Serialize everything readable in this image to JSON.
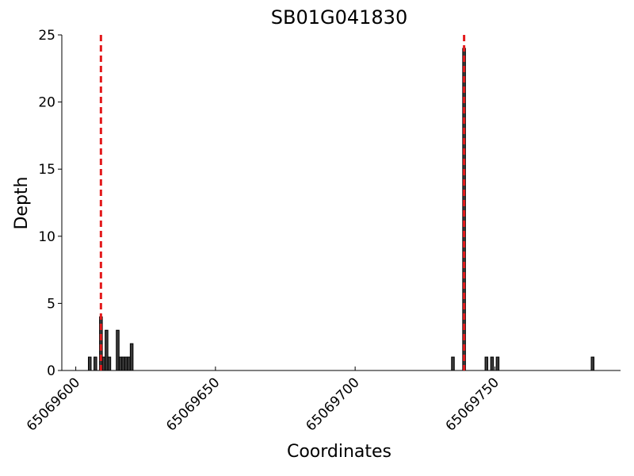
{
  "chart_data": {
    "type": "bar",
    "title": "SB01G041830",
    "x_label": "Coordinates",
    "y_label": "Depth",
    "x": [
      65069605,
      65069607,
      65069609,
      65069610,
      65069611,
      65069612,
      65069615,
      65069616,
      65069617,
      65069618,
      65069619,
      65069620,
      65069735,
      65069739,
      65069747,
      65069749,
      65069751,
      65069785
    ],
    "values": [
      1,
      1,
      4,
      1,
      3,
      1,
      3,
      1,
      1,
      1,
      1,
      2,
      1,
      24,
      1,
      1,
      1,
      1
    ],
    "color": "#3a3a3a",
    "edge_color": "#000000",
    "vlines": [
      65069609,
      65069739
    ],
    "vline_color": "#e31a1c",
    "xlim": [
      65069595,
      65069795
    ],
    "xticks": [
      65069600,
      65069650,
      65069700,
      65069750
    ],
    "ylim": [
      0,
      25
    ],
    "yticks": [
      0,
      5,
      10,
      15,
      20,
      25
    ],
    "grid": false
  }
}
